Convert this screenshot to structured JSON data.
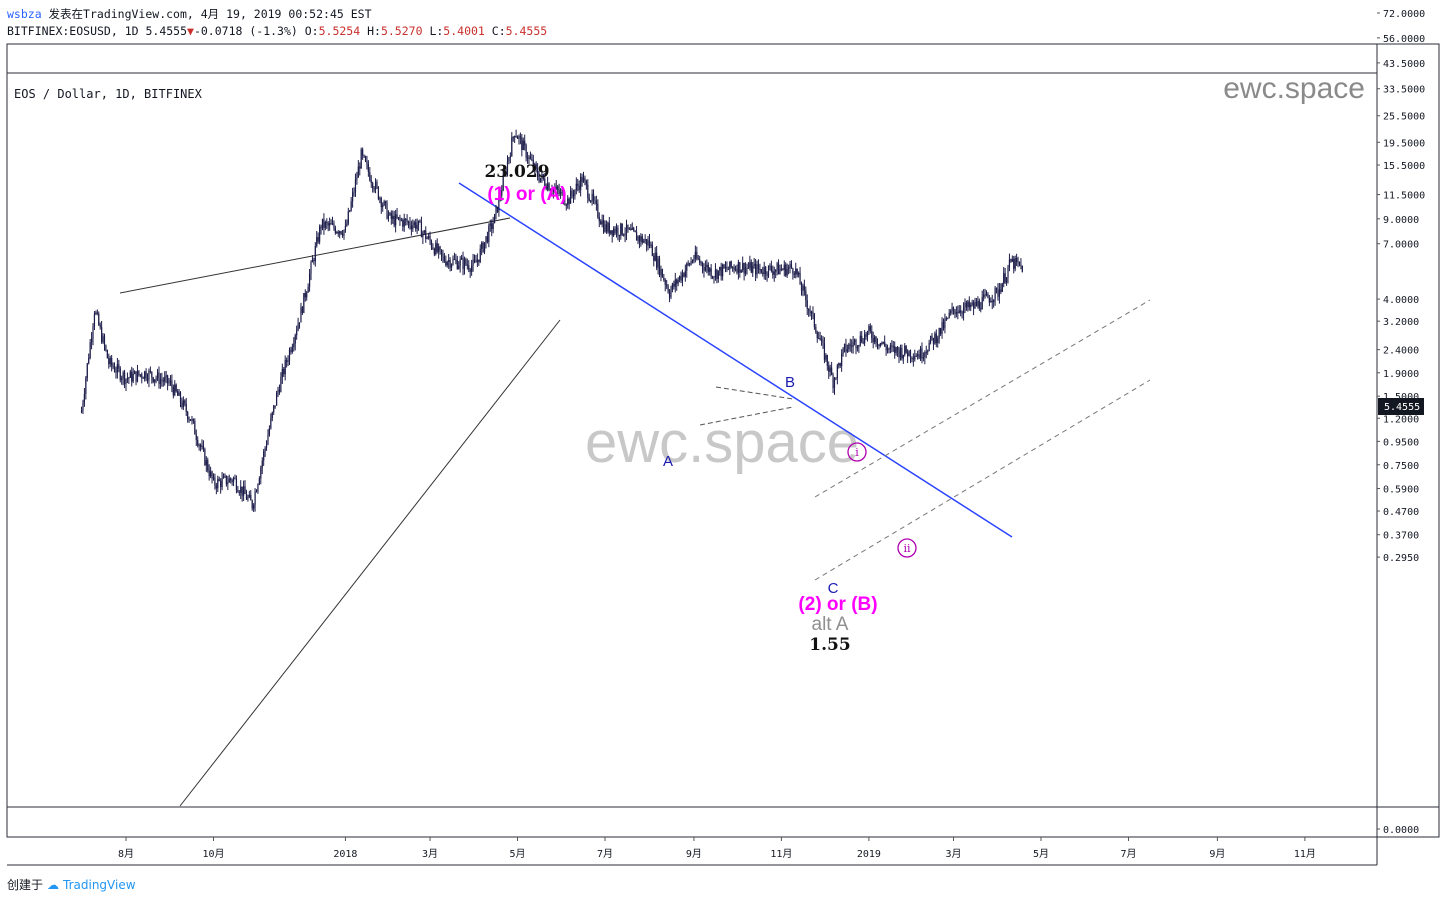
{
  "header": {
    "user": "wsbza",
    "published_prefix": " 发表在TradingView.com, 4月 19, 2019 00:52:45 EST",
    "symbol": "BITFINEX:EOSUSD, 1D 5.4555",
    "change": "-0.0718 (-1.3%)",
    "o_label": "O:",
    "o": "5.5254",
    "h_label": "H:",
    "h": "5.5270",
    "l_label": "L:",
    "l": "5.4001",
    "c_label": "C:",
    "c": "5.4555"
  },
  "pane_title": "EOS / Dollar, 1D, BITFINEX",
  "watermark": "ewc.space",
  "footer": {
    "created": "创建于",
    "brand": "TradingView"
  },
  "colors": {
    "candle": "#1c1c4a",
    "trendline": "#2943ff",
    "wave_label": "#ff00ff",
    "roman": "#b000b0"
  },
  "chart_data": {
    "type": "candlestick",
    "symbol": "EOSUSD",
    "interval": "1D",
    "exchange": "BITFINEX",
    "scale": "log",
    "last_price": 5.4555,
    "y_ticks": [
      "72.0000",
      "56.0000",
      "43.5000",
      "33.5000",
      "25.5000",
      "19.5000",
      "15.5000",
      "11.5000",
      "9.0000",
      "7.0000",
      "5.4555",
      "4.0000",
      "3.2000",
      "2.4000",
      "1.9000",
      "1.5000",
      "1.2000",
      "0.9500",
      "0.7500",
      "0.5900",
      "0.4700",
      "0.3700",
      "0.2950",
      "0.0000"
    ],
    "x_ticks": [
      "8月",
      "10月",
      "2018",
      "3月",
      "5月",
      "7月",
      "9月",
      "11月",
      "2019",
      "3月",
      "5月",
      "7月",
      "9月",
      "11月"
    ],
    "annotations": [
      {
        "text": "23.029",
        "kind": "price"
      },
      {
        "text": "(1) or (A)",
        "kind": "wave"
      },
      {
        "text": "A",
        "kind": "sub"
      },
      {
        "text": "B",
        "kind": "sub"
      },
      {
        "text": "C",
        "kind": "sub"
      },
      {
        "text": "(2) or (B)",
        "kind": "wave"
      },
      {
        "text": "alt A",
        "kind": "alt"
      },
      {
        "text": "1.55",
        "kind": "price"
      },
      {
        "text": "i",
        "kind": "roman"
      },
      {
        "text": "ii",
        "kind": "roman"
      }
    ],
    "series": [
      {
        "date": "2017-07-01",
        "close": 1.3
      },
      {
        "date": "2017-07-10",
        "close": 3.6
      },
      {
        "date": "2017-07-20",
        "close": 2.1
      },
      {
        "date": "2017-08-01",
        "close": 1.8
      },
      {
        "date": "2017-08-15",
        "close": 1.9
      },
      {
        "date": "2017-09-01",
        "close": 1.7
      },
      {
        "date": "2017-09-15",
        "close": 1.2
      },
      {
        "date": "2017-10-01",
        "close": 0.62
      },
      {
        "date": "2017-10-15",
        "close": 0.65
      },
      {
        "date": "2017-10-28",
        "close": 0.5
      },
      {
        "date": "2017-11-15",
        "close": 1.6
      },
      {
        "date": "2017-12-01",
        "close": 3.5
      },
      {
        "date": "2017-12-15",
        "close": 8.5
      },
      {
        "date": "2018-01-01",
        "close": 8.0
      },
      {
        "date": "2018-01-12",
        "close": 17.0
      },
      {
        "date": "2018-02-01",
        "close": 9.0
      },
      {
        "date": "2018-02-20",
        "close": 8.5
      },
      {
        "date": "2018-03-10",
        "close": 6.0
      },
      {
        "date": "2018-04-01",
        "close": 5.6
      },
      {
        "date": "2018-04-15",
        "close": 9.0
      },
      {
        "date": "2018-04-29",
        "close": 22.0
      },
      {
        "date": "2018-05-15",
        "close": 14.0
      },
      {
        "date": "2018-06-05",
        "close": 10.8
      },
      {
        "date": "2018-06-15",
        "close": 13.5
      },
      {
        "date": "2018-07-01",
        "close": 8.2
      },
      {
        "date": "2018-07-15",
        "close": 8.0
      },
      {
        "date": "2018-08-01",
        "close": 7.0
      },
      {
        "date": "2018-08-15",
        "close": 4.3
      },
      {
        "date": "2018-09-01",
        "close": 6.1
      },
      {
        "date": "2018-09-15",
        "close": 5.2
      },
      {
        "date": "2018-10-01",
        "close": 5.6
      },
      {
        "date": "2018-10-15",
        "close": 5.4
      },
      {
        "date": "2018-11-01",
        "close": 5.4
      },
      {
        "date": "2018-11-10",
        "close": 5.5
      },
      {
        "date": "2018-11-25",
        "close": 3.0
      },
      {
        "date": "2018-12-07",
        "close": 1.75
      },
      {
        "date": "2018-12-15",
        "close": 2.4
      },
      {
        "date": "2019-01-01",
        "close": 2.85
      },
      {
        "date": "2019-01-15",
        "close": 2.4
      },
      {
        "date": "2019-02-06",
        "close": 2.3
      },
      {
        "date": "2019-02-20",
        "close": 2.9
      },
      {
        "date": "2019-03-01",
        "close": 3.6
      },
      {
        "date": "2019-03-15",
        "close": 3.7
      },
      {
        "date": "2019-04-01",
        "close": 4.3
      },
      {
        "date": "2019-04-10",
        "close": 5.8
      },
      {
        "date": "2019-04-19",
        "close": 5.4555
      }
    ]
  }
}
